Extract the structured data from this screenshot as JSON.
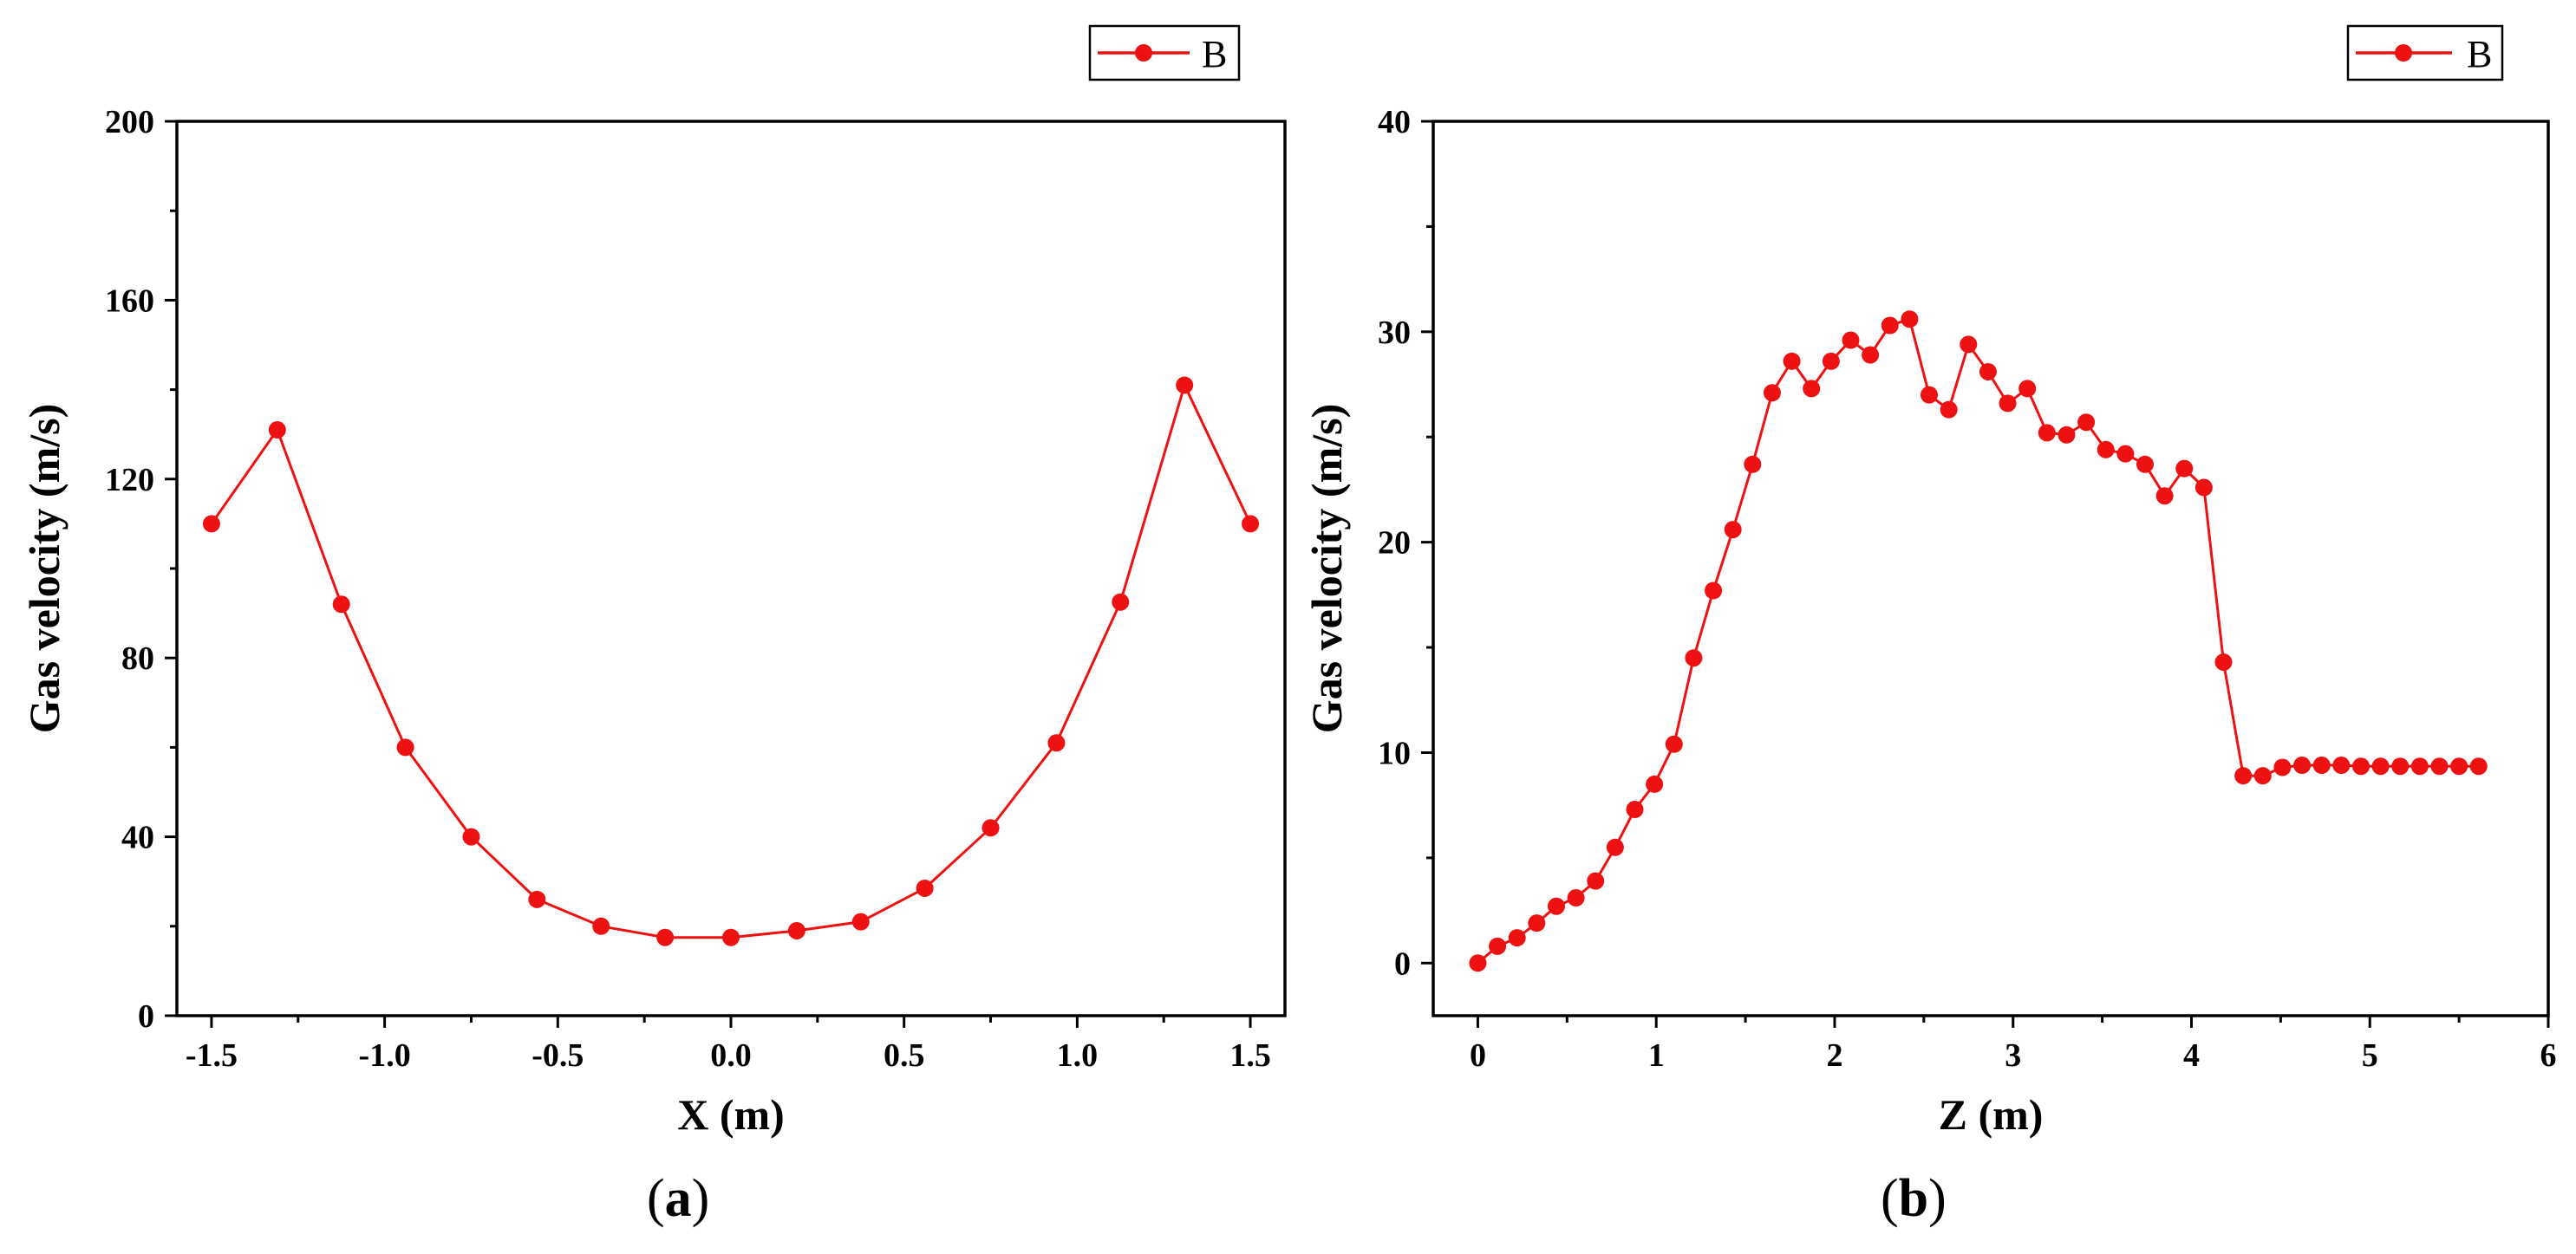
{
  "colors": {
    "series": "#ee1111",
    "axis": "#000000",
    "background": "#ffffff"
  },
  "chart_data": [
    {
      "type": "line",
      "caption_open": "(",
      "caption_letter": "a",
      "caption_close": ")",
      "xlabel": "X (m)",
      "ylabel": "Gas velocity (m/s)",
      "xlim": [
        -1.6,
        1.6
      ],
      "ylim": [
        0,
        200
      ],
      "xticks": [
        -1.5,
        -1.0,
        -0.5,
        0.0,
        0.5,
        1.0,
        1.5
      ],
      "xtick_labels": [
        "-1.5",
        "-1.0",
        "-0.5",
        "0.0",
        "0.5",
        "1.0",
        "1.5"
      ],
      "yticks": [
        0,
        40,
        80,
        120,
        160,
        200
      ],
      "ytick_labels": [
        "0",
        "40",
        "80",
        "120",
        "160",
        "200"
      ],
      "legend": {
        "label": "B",
        "placement": "top-right"
      },
      "series": [
        {
          "name": "B",
          "x": [
            -1.5,
            -1.31,
            -1.125,
            -0.94,
            -0.75,
            -0.56,
            -0.375,
            -0.19,
            0.0,
            0.19,
            0.375,
            0.56,
            0.75,
            0.94,
            1.125,
            1.31,
            1.5
          ],
          "y": [
            110,
            131,
            92,
            60,
            40,
            26,
            20,
            17.5,
            17.5,
            19,
            21,
            28.5,
            42,
            61,
            92.5,
            141,
            110
          ]
        }
      ]
    },
    {
      "type": "line",
      "caption_open": "(",
      "caption_letter": "b",
      "caption_close": ")",
      "xlabel": "Z (m)",
      "ylabel": "Gas velocity (m/s)",
      "xlim": [
        -0.25,
        6
      ],
      "ylim": [
        -2.5,
        40
      ],
      "xticks": [
        0,
        1,
        2,
        3,
        4,
        5,
        6
      ],
      "xtick_labels": [
        "0",
        "1",
        "2",
        "3",
        "4",
        "5",
        "6"
      ],
      "yticks": [
        0,
        10,
        20,
        30,
        40
      ],
      "ytick_labels": [
        "0",
        "10",
        "20",
        "30",
        "40"
      ],
      "legend": {
        "label": "B",
        "placement": "top-right"
      },
      "series": [
        {
          "name": "B",
          "x": [
            0.0,
            0.11,
            0.22,
            0.33,
            0.44,
            0.55,
            0.66,
            0.77,
            0.88,
            0.99,
            1.1,
            1.21,
            1.32,
            1.43,
            1.54,
            1.65,
            1.76,
            1.87,
            1.98,
            2.09,
            2.2,
            2.31,
            2.42,
            2.53,
            2.64,
            2.75,
            2.86,
            2.97,
            3.08,
            3.19,
            3.3,
            3.41,
            3.52,
            3.63,
            3.74,
            3.85,
            3.96,
            4.07,
            4.18,
            4.29,
            4.4,
            4.51,
            4.62,
            4.73,
            4.84,
            4.95,
            5.06,
            5.17,
            5.28,
            5.39,
            5.5,
            5.61
          ],
          "y": [
            0,
            0.8,
            1.2,
            1.9,
            2.7,
            3.1,
            3.9,
            5.5,
            7.3,
            8.5,
            10.4,
            14.5,
            17.7,
            20.6,
            23.7,
            27.1,
            28.6,
            27.3,
            28.6,
            29.6,
            28.9,
            30.3,
            30.6,
            27.0,
            26.3,
            29.4,
            28.1,
            26.6,
            27.3,
            25.2,
            25.1,
            25.7,
            24.4,
            24.2,
            23.7,
            22.2,
            23.5,
            22.6,
            14.3,
            8.9,
            8.9,
            9.3,
            9.4,
            9.4,
            9.4,
            9.35,
            9.35,
            9.35,
            9.35,
            9.35,
            9.35,
            9.35
          ]
        }
      ]
    }
  ]
}
